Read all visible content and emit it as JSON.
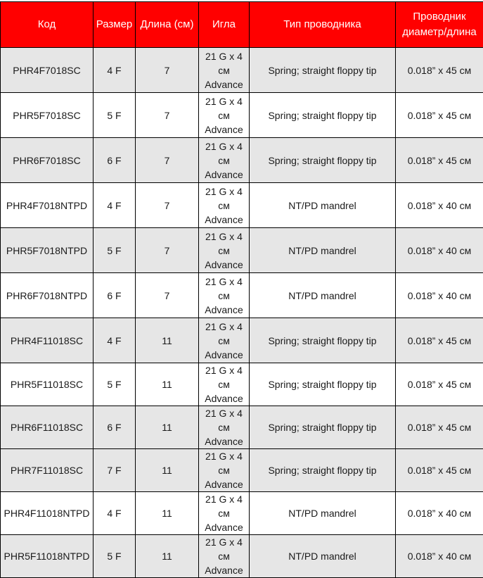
{
  "colors": {
    "header_bg": "#ff0000",
    "header_text": "#ffffff",
    "row_gray": "#e6e6e6",
    "row_white": "#ffffff"
  },
  "headers": [
    "Код",
    "Размер",
    "Длина (см)",
    "Игла",
    "Тип проводника",
    "Проводник диаметр/длина"
  ],
  "rows": [
    {
      "code": "PHR4F7018SC",
      "size": "4 F",
      "length": "7",
      "needle": "21 G x 4 см Advance",
      "type": "Spring; straight floppy tip",
      "wire": "0.018” x 45 см",
      "shade": "gray"
    },
    {
      "code": "PHR5F7018SC",
      "size": "5 F",
      "length": "7",
      "needle": "21 G x 4 см Advance",
      "type": "Spring; straight floppy tip",
      "wire": "0.018” x 45 см",
      "shade": "white"
    },
    {
      "code": "PHR6F7018SC",
      "size": "6 F",
      "length": "7",
      "needle": "21 G x 4 см Advance",
      "type": "Spring; straight floppy tip",
      "wire": "0.018” x 45 см",
      "shade": "gray"
    },
    {
      "code": "PHR4F7018NTPD",
      "size": "4 F",
      "length": "7",
      "needle": "21 G x 4 см Advance",
      "type": "NT/PD mandrel",
      "wire": "0.018” x 40 см",
      "shade": "white"
    },
    {
      "code": "PHR5F7018NTPD",
      "size": "5 F",
      "length": "7",
      "needle": "21 G x 4 см Advance",
      "type": "NT/PD mandrel",
      "wire": "0.018” x 40 см",
      "shade": "gray"
    },
    {
      "code": "PHR6F7018NTPD",
      "size": "6 F",
      "length": "7",
      "needle": "21 G x 4 см Advance",
      "type": "NT/PD mandrel",
      "wire": "0.018” x 40 см",
      "shade": "white"
    },
    {
      "code": "PHR4F11018SC",
      "size": "4 F",
      "length": "11",
      "needle": "21 G x 4 см Advance",
      "type": "Spring; straight floppy tip",
      "wire": "0.018” x 45 см",
      "shade": "gray"
    },
    {
      "code": "PHR5F11018SC",
      "size": "5 F",
      "length": "11",
      "needle": "21 G x 4 см Advance",
      "type": "Spring; straight floppy tip",
      "wire": "0.018” x 45 см",
      "shade": "white"
    },
    {
      "code": "PHR6F11018SC",
      "size": "6 F",
      "length": "11",
      "needle": "21 G x 4 см Advance",
      "type": "Spring; straight floppy tip",
      "wire": "0.018” x 45 см",
      "shade": "gray"
    },
    {
      "code": "PHR7F11018SC",
      "size": "7 F",
      "length": "11",
      "needle": "21 G x 4 см Advance",
      "type": "Spring; straight floppy tip",
      "wire": "0.018” x 45 см",
      "shade": "gray"
    },
    {
      "code": "PHR4F11018NTPD",
      "size": "4 F",
      "length": "11",
      "needle": "21 G x 4 см Advance",
      "type": "NT/PD mandrel",
      "wire": "0.018” x 40 см",
      "shade": "white"
    },
    {
      "code": "PHR5F11018NTPD",
      "size": "5 F",
      "length": "11",
      "needle": "21 G x 4 см Advance",
      "type": "NT/PD mandrel",
      "wire": "0.018” x 40 см",
      "shade": "gray"
    }
  ]
}
